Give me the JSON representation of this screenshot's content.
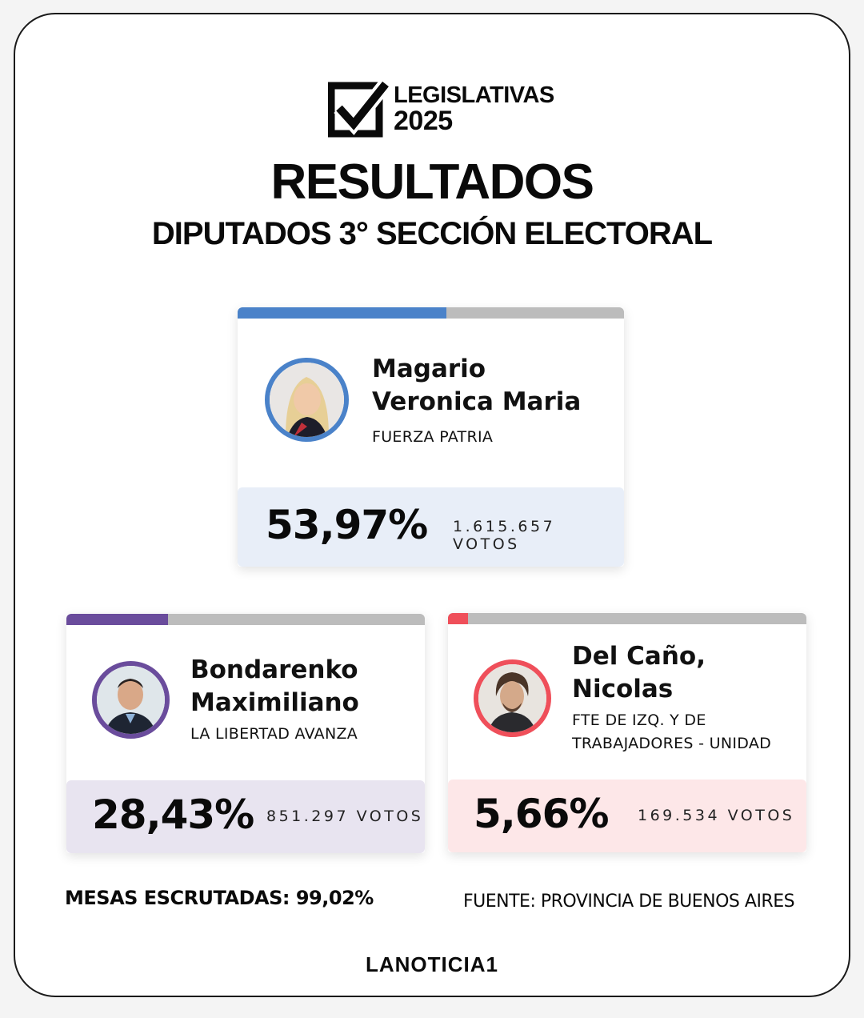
{
  "header": {
    "logo_line1": "LEGISLATIVAS",
    "logo_line2": "2025",
    "title": "RESULTADOS",
    "subtitle": "DIPUTADOS 3° SECCIÓN ELECTORAL"
  },
  "candidates": [
    {
      "name_line1": "Magario",
      "name_line2": "Veronica Maria",
      "party_line1": "FUERZA PATRIA",
      "party_line2": "",
      "percent": "53,97%",
      "votes": "1.615.657 VOTOS",
      "share": 0.5397,
      "color": "#4a82c9",
      "result_bg": "#e8eef8"
    },
    {
      "name_line1": "Bondarenko",
      "name_line2": "Maximiliano",
      "party_line1": "LA LIBERTAD AVANZA",
      "party_line2": "",
      "percent": "28,43%",
      "votes": "851.297 VOTOS",
      "share": 0.2843,
      "color": "#6a4c9c",
      "result_bg": "#e8e4f0"
    },
    {
      "name_line1": "Del Caño,",
      "name_line2": "Nicolas",
      "party_line1": "FTE DE IZQ. Y DE",
      "party_line2": "TRABAJADORES - UNIDAD",
      "percent": "5,66%",
      "votes": "169.534 VOTOS",
      "share": 0.0566,
      "color": "#ef4f5a",
      "result_bg": "#fde7e8"
    }
  ],
  "footer": {
    "mesas": "MESAS ESCRUTADAS: 99,02%",
    "fuente": "FUENTE: PROVINCIA DE BUENOS AIRES",
    "brand": "LANOTICIA1"
  }
}
